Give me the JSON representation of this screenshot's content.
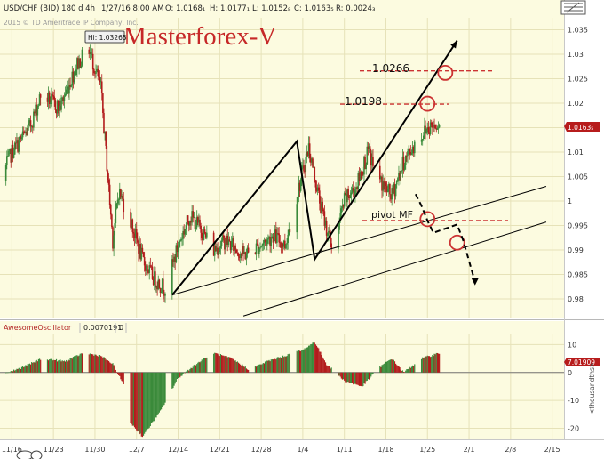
{
  "header": {
    "symbol": "USD/CHF (BID) 180 d 4h",
    "date": "1/27/16 8:00 AM",
    "open": "O: 1.0168₁",
    "high": "H: 1.0177₁",
    "low": "L: 1.0152₈",
    "close": "C: 1.0163₅",
    "range": "R: 0.0024₃",
    "copyright": "2015 © TD Ameritrade IP Company, Inc."
  },
  "watermark": "Masterforex-V",
  "colors": {
    "bull": "#3a8a3a",
    "bear": "#b21c1c",
    "chart_bg": "#fcfbe0",
    "annotation_red": "#cc3333",
    "line": "#000000"
  },
  "annotations": {
    "hi_label": "Hi: 1.03265",
    "level_1": "1.0266",
    "level_2": "1.0198",
    "pivot": "pivot MF",
    "last_price": "1.0163₅"
  },
  "oscillator": {
    "name": "AwesomeOscillator",
    "value": "0.0070191",
    "zero": "0",
    "last_label": "7.01909",
    "units": "<thousandths>"
  },
  "chart_data": [
    {
      "type": "candlestick",
      "title": "",
      "xlabel": "",
      "ylabel": "",
      "ylim": [
        0.976,
        1.038
      ],
      "y_ticks": [
        "1.035",
        "1.03",
        "1.025",
        "1.02",
        "1.015",
        "1.01",
        "1.005",
        "1",
        "0.995",
        "0.99",
        "0.985",
        "0.98"
      ],
      "y_tick_values": [
        1.035,
        1.03,
        1.025,
        1.02,
        1.015,
        1.01,
        1.005,
        1.0,
        0.995,
        0.99,
        0.985,
        0.98
      ],
      "x_ticks": [
        "11/16",
        "11/23",
        "11/30",
        "12/7",
        "12/14",
        "12/21",
        "12/28",
        "1/4",
        "1/11",
        "1/18",
        "1/25",
        "2/1",
        "2/8",
        "2/15"
      ],
      "x_tick_dates": [
        "2015-11-16",
        "2015-11-23",
        "2015-11-30",
        "2015-12-07",
        "2015-12-14",
        "2015-12-21",
        "2015-12-28",
        "2016-01-04",
        "2016-01-11",
        "2016-01-18",
        "2016-01-25",
        "2016-02-01",
        "2016-02-08",
        "2016-02-15"
      ],
      "x_range": [
        "2015-11-14",
        "2016-02-17"
      ],
      "last_date": "2016-01-27",
      "close_path": {
        "dates": [
          "2015-11-14",
          "2015-11-16",
          "2015-11-19",
          "2015-11-21",
          "2015-11-24",
          "2015-11-27",
          "2015-11-29",
          "2015-12-01",
          "2015-12-03",
          "2015-12-04",
          "2015-12-06",
          "2015-12-08",
          "2015-12-10",
          "2015-12-12",
          "2015-12-14",
          "2015-12-16",
          "2015-12-18",
          "2015-12-20",
          "2015-12-22",
          "2015-12-25",
          "2015-12-28",
          "2015-12-30",
          "2016-01-01",
          "2016-01-03",
          "2016-01-05",
          "2016-01-07",
          "2016-01-09",
          "2016-01-11",
          "2016-01-13",
          "2016-01-15",
          "2016-01-17",
          "2016-01-19",
          "2016-01-21",
          "2016-01-23",
          "2016-01-25",
          "2016-01-27"
        ],
        "values": [
          1.004,
          1.01,
          1.015,
          1.022,
          1.019,
          1.028,
          1.031,
          1.023,
          0.992,
          1.002,
          0.996,
          0.988,
          0.984,
          0.982,
          0.991,
          0.997,
          0.994,
          0.99,
          0.992,
          0.989,
          0.991,
          0.993,
          0.991,
          1.001,
          1.011,
          0.999,
          0.99,
          1.0,
          1.003,
          1.01,
          1.004,
          1.001,
          1.008,
          1.012,
          1.015,
          1.0163
        ]
      },
      "levels": [
        {
          "label": "1.0266",
          "value": 1.0266
        },
        {
          "label": "1.0198",
          "value": 1.0198
        },
        {
          "label": "pivot MF",
          "value": 0.996
        }
      ],
      "pattern_vertices": {
        "dates": [
          "2015-12-13",
          "2016-01-03",
          "2016-01-06",
          "2016-01-30"
        ],
        "values": [
          0.9808,
          1.0122,
          0.9881,
          1.0328
        ]
      },
      "trendlines": [
        {
          "dates": [
            "2015-12-13",
            "2016-02-14"
          ],
          "values": [
            0.9808,
            1.003
          ]
        },
        {
          "dates": [
            "2015-12-25",
            "2016-02-14"
          ],
          "values": [
            0.9765,
            0.9957
          ]
        }
      ],
      "targets": [
        {
          "date": "2016-01-28",
          "value": 1.0262
        },
        {
          "date": "2016-01-25",
          "value": 1.0199
        },
        {
          "date": "2016-01-25",
          "value": 0.9963
        },
        {
          "date": "2016-01-30",
          "value": 0.9915
        }
      ],
      "projection": {
        "dates": [
          "2016-01-23",
          "2016-01-24",
          "2016-01-25",
          "2016-01-26",
          "2016-01-30",
          "2016-01-31",
          "2016-02-02"
        ],
        "values": [
          1.0014,
          0.999,
          0.996,
          0.9935,
          0.9952,
          0.992,
          0.9835
        ]
      }
    },
    {
      "type": "bar",
      "title": "AwesomeOscillator",
      "ylim": [
        -24,
        13
      ],
      "y_ticks": [
        "10",
        "0",
        "-10",
        "-20"
      ],
      "y_tick_values": [
        10,
        0,
        -10,
        -20
      ],
      "last_value": 7.01909,
      "profile": {
        "dates": [
          "2015-11-14",
          "2015-11-18",
          "2015-11-21",
          "2015-11-25",
          "2015-11-28",
          "2015-12-01",
          "2015-12-03",
          "2015-12-05",
          "2015-12-06",
          "2015-12-08",
          "2015-12-11",
          "2015-12-14",
          "2015-12-17",
          "2015-12-20",
          "2015-12-23",
          "2015-12-26",
          "2015-12-29",
          "2016-01-01",
          "2016-01-04",
          "2016-01-06",
          "2016-01-08",
          "2016-01-11",
          "2016-01-14",
          "2016-01-17",
          "2016-01-19",
          "2016-01-21",
          "2016-01-24",
          "2016-01-27"
        ],
        "values": [
          -1,
          2,
          5,
          4,
          7,
          6,
          3,
          -5,
          -18,
          -23,
          -14,
          -2,
          3,
          7,
          5,
          1,
          4,
          6,
          8,
          11,
          3,
          -3,
          -5,
          2,
          5,
          0,
          5,
          7
        ]
      }
    }
  ]
}
